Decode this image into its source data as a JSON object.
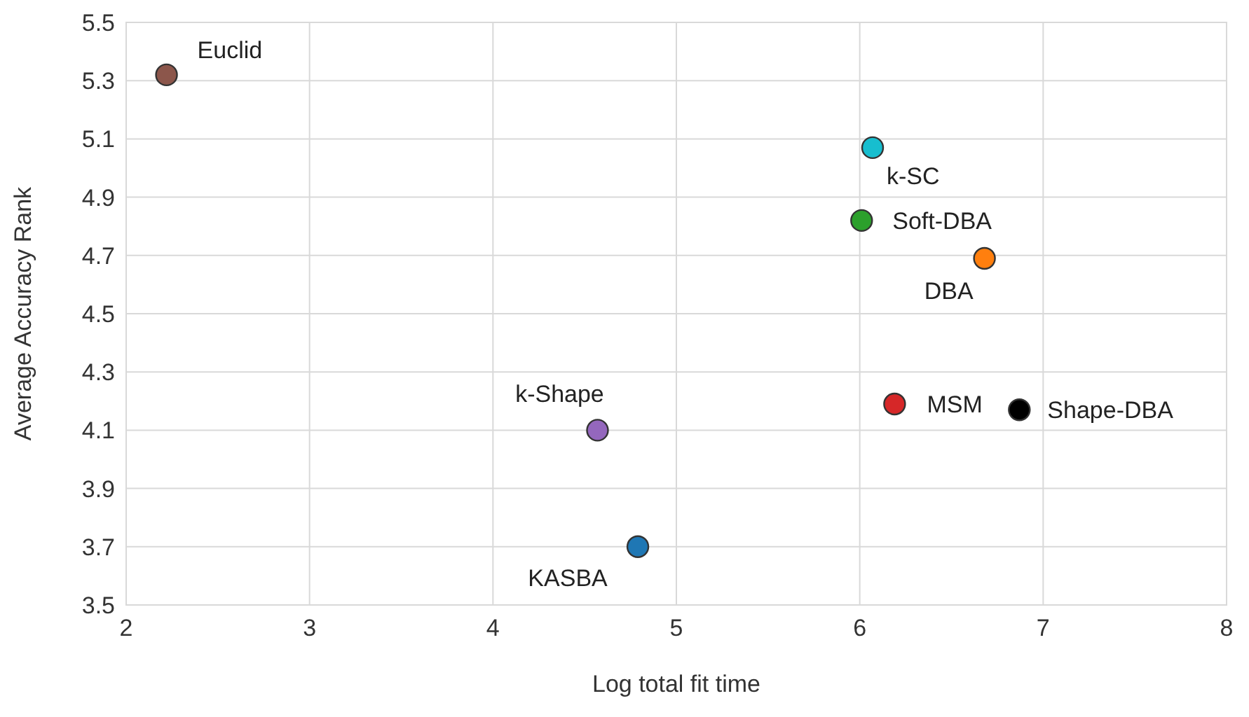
{
  "chart_data": {
    "type": "scatter",
    "xlabel": "Log total fit time",
    "ylabel": "Average Accuracy Rank",
    "xlim": [
      2,
      8
    ],
    "xticks": [
      2,
      3,
      4,
      5,
      6,
      7,
      8
    ],
    "ylim": [
      3.5,
      5.5
    ],
    "yticks": [
      3.5,
      3.7,
      3.9,
      4.1,
      4.3,
      4.5,
      4.7,
      4.9,
      5.1,
      5.3,
      5.5
    ],
    "grid": true,
    "marker": "circle",
    "series": [
      {
        "name": "Euclid",
        "color": "#8c564b",
        "x": [
          2.22
        ],
        "values": [
          5.32
        ]
      },
      {
        "name": "k-SC",
        "color": "#17becf",
        "x": [
          6.07
        ],
        "values": [
          5.07
        ]
      },
      {
        "name": "Soft-DBA",
        "color": "#2ca02c",
        "x": [
          6.01
        ],
        "values": [
          4.82
        ]
      },
      {
        "name": "DBA",
        "color": "#ff7f0e",
        "x": [
          6.68
        ],
        "values": [
          4.69
        ]
      },
      {
        "name": "MSM",
        "color": "#d62728",
        "x": [
          6.19
        ],
        "values": [
          4.19
        ]
      },
      {
        "name": "Shape-DBA",
        "color": "#000000",
        "x": [
          6.87
        ],
        "values": [
          4.17
        ]
      },
      {
        "name": "k-Shape",
        "color": "#9467bd",
        "x": [
          4.57
        ],
        "values": [
          4.1
        ]
      },
      {
        "name": "KASBA",
        "color": "#1f77b4",
        "x": [
          4.79
        ],
        "values": [
          3.7
        ]
      }
    ]
  }
}
